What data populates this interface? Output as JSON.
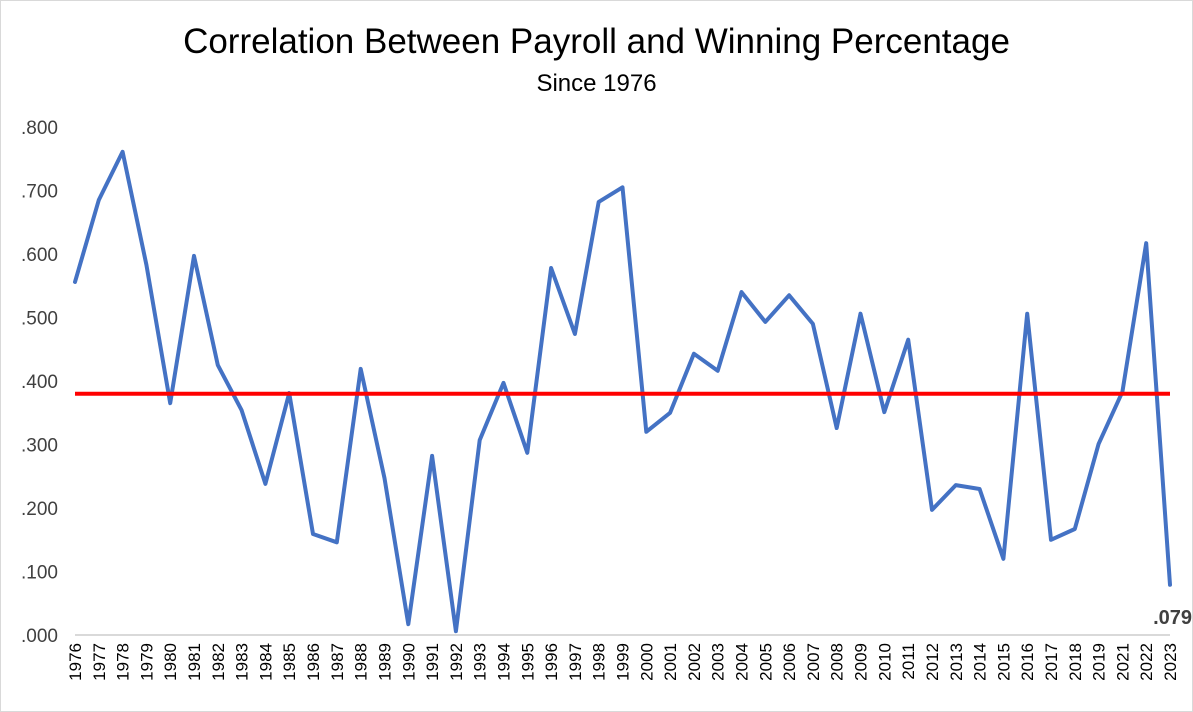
{
  "chart_data": {
    "type": "line",
    "title": "Correlation Between Payroll and Winning Percentage",
    "subtitle": "Since 1976",
    "xlabel": "",
    "ylabel": "",
    "ylim": [
      0,
      0.8
    ],
    "grid": false,
    "categories": [
      "1976",
      "1977",
      "1978",
      "1979",
      "1980",
      "1981",
      "1982",
      "1983",
      "1984",
      "1985",
      "1986",
      "1987",
      "1988",
      "1989",
      "1990",
      "1991",
      "1992",
      "1993",
      "1994",
      "1995",
      "1996",
      "1997",
      "1998",
      "1999",
      "2000",
      "2001",
      "2002",
      "2003",
      "2004",
      "2005",
      "2006",
      "2007",
      "2008",
      "2009",
      "2010",
      "2011",
      "2012",
      "2013",
      "2014",
      "2015",
      "2016",
      "2017",
      "2018",
      "2019",
      "2021",
      "2022",
      "2023"
    ],
    "series": [
      {
        "name": "Correlation",
        "color": "#4472C4",
        "values": [
          0.556,
          0.685,
          0.761,
          0.583,
          0.365,
          0.597,
          0.425,
          0.354,
          0.238,
          0.381,
          0.159,
          0.146,
          0.419,
          0.247,
          0.017,
          0.282,
          0.006,
          0.307,
          0.397,
          0.287,
          0.578,
          0.474,
          0.682,
          0.705,
          0.32,
          0.35,
          0.443,
          0.416,
          0.54,
          0.493,
          0.535,
          0.49,
          0.326,
          0.506,
          0.351,
          0.465,
          0.197,
          0.236,
          0.23,
          0.12,
          0.506,
          0.15,
          0.167,
          0.301,
          0.383,
          0.617,
          0.079
        ]
      }
    ],
    "reference_line": {
      "value": 0.38,
      "color": "#FF0000"
    },
    "yticks": [
      ".000",
      ".100",
      ".200",
      ".300",
      ".400",
      ".500",
      ".600",
      ".700",
      ".800"
    ],
    "ytick_values": [
      0,
      0.1,
      0.2,
      0.3,
      0.4,
      0.5,
      0.6,
      0.7,
      0.8
    ],
    "data_labels": [
      {
        "category": "2023",
        "text": ".079"
      }
    ]
  }
}
